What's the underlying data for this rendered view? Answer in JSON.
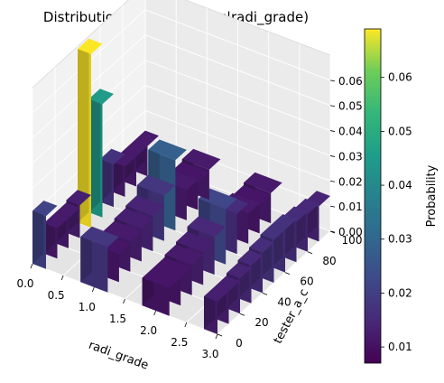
{
  "chart_data": {
    "type": "bar3d",
    "title": "Distribution of P(tester_a_c|radi_grade)",
    "xlabel": "radi_grade",
    "ylabel": "tester_a_c",
    "zlabel": "",
    "colorbar_label": "Probability",
    "xlim": [
      0,
      3.0
    ],
    "ylim": [
      0,
      100
    ],
    "zlim": [
      0,
      0.07
    ],
    "x_ticks": [
      "0.0",
      "0.5",
      "1.0",
      "1.5",
      "2.0",
      "2.5",
      "3.0"
    ],
    "y_ticks": [
      "0",
      "20",
      "40",
      "60",
      "80",
      "100"
    ],
    "z_ticks": [
      "0.00",
      "0.01",
      "0.02",
      "0.03",
      "0.04",
      "0.05",
      "0.06"
    ],
    "colorbar_ticks": [
      "0.01",
      "0.02",
      "0.03",
      "0.04",
      "0.05",
      "0.06"
    ],
    "colorbar_range": [
      0.007,
      0.069
    ],
    "colormap": "viridis",
    "categories_x": [
      0,
      1,
      2,
      3
    ],
    "series": [
      {
        "x": 0,
        "y_from": 0,
        "y_to": 100,
        "values": [
          0.021,
          0.012,
          0.012,
          0.013,
          0.069,
          0.045,
          0.017,
          0.012,
          0.012,
          0.012
        ]
      },
      {
        "x": 1,
        "y_from": 0,
        "y_to": 100,
        "values": [
          0.018,
          0.011,
          0.012,
          0.013,
          0.014,
          0.018,
          0.028,
          0.012,
          0.011,
          0.012
        ]
      },
      {
        "x": 2,
        "y_from": 0,
        "y_to": 100,
        "values": [
          0.011,
          0.011,
          0.012,
          0.013,
          0.015,
          0.022,
          0.016,
          0.012,
          0.011,
          0.012
        ]
      },
      {
        "x": 3,
        "y_from": 0,
        "y_to": 100,
        "values": [
          0.013,
          0.013,
          0.014,
          0.015,
          0.016,
          0.017,
          0.017,
          0.016,
          0.015,
          0.014
        ]
      }
    ]
  }
}
